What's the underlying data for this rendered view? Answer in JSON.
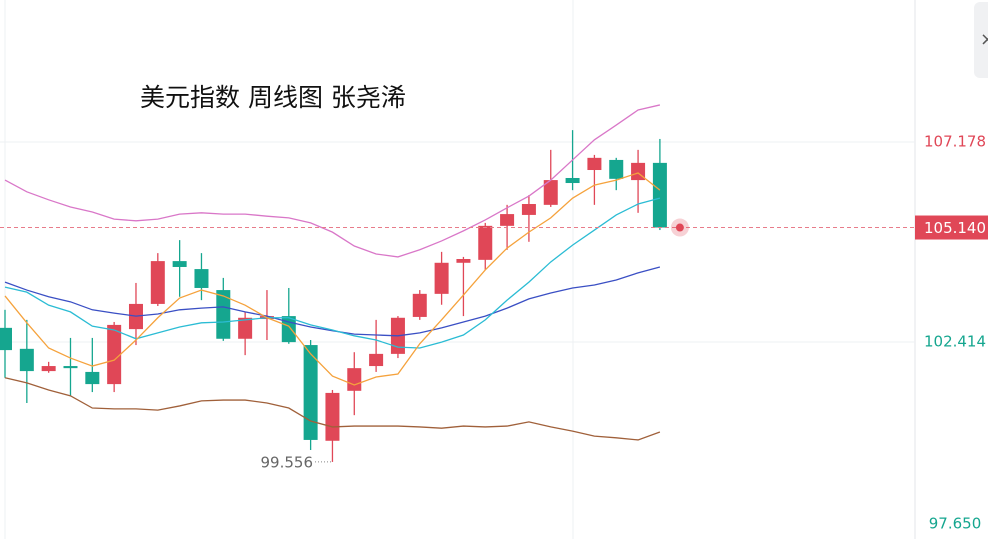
{
  "chart_data": {
    "type": "candlestick",
    "title": "美元指数  周线图  张尧浠",
    "up_color": "#e04757",
    "down_color": "#15a68f",
    "open": [
      102.75,
      102.25,
      101.72,
      101.84,
      101.7,
      101.41,
      102.72,
      103.32,
      104.34,
      104.15,
      103.65,
      102.49,
      102.96,
      103.03,
      102.34,
      100.06,
      101.25,
      101.84,
      102.13,
      103.01,
      103.56,
      104.3,
      104.37,
      105.18,
      105.44,
      105.68,
      106.32,
      106.51,
      106.75,
      106.27,
      106.68
    ],
    "high": [
      103.18,
      102.94,
      101.94,
      102.51,
      102.51,
      102.89,
      103.82,
      104.53,
      104.84,
      104.53,
      103.94,
      103.13,
      103.65,
      103.7,
      102.46,
      101.27,
      102.17,
      102.94,
      103.03,
      103.65,
      104.56,
      104.44,
      105.25,
      105.68,
      105.91,
      106.99,
      107.46,
      106.87,
      106.8,
      106.99,
      107.25
    ],
    "low": [
      101.56,
      100.96,
      101.68,
      101.13,
      101.22,
      101.22,
      102.34,
      103.27,
      103.49,
      103.41,
      102.44,
      102.1,
      102.46,
      102.37,
      99.84,
      99.556,
      100.67,
      101.7,
      102.03,
      102.94,
      103.3,
      103.03,
      104.13,
      104.61,
      104.8,
      105.63,
      106.03,
      105.68,
      106.03,
      105.49,
      105.08
    ],
    "close": [
      102.22,
      101.72,
      101.84,
      101.79,
      101.41,
      102.82,
      103.32,
      104.34,
      104.2,
      103.7,
      102.49,
      102.99,
      103.03,
      102.41,
      100.08,
      101.2,
      101.79,
      102.13,
      102.99,
      103.56,
      104.3,
      104.39,
      105.18,
      105.46,
      105.7,
      106.27,
      106.2,
      106.8,
      106.3,
      106.68,
      105.14
    ],
    "lines": [
      {
        "color": "#d977c8",
        "values": [
          106.27,
          105.99,
          105.8,
          105.63,
          105.51,
          105.34,
          105.3,
          105.34,
          105.46,
          105.49,
          105.46,
          105.46,
          105.41,
          105.37,
          105.25,
          105.03,
          104.7,
          104.51,
          104.44,
          104.61,
          104.82,
          105.06,
          105.32,
          105.61,
          105.89,
          106.27,
          106.75,
          107.23,
          107.58,
          107.94,
          108.06
        ]
      },
      {
        "color": "#a0603a",
        "values": [
          101.56,
          101.44,
          101.27,
          101.13,
          100.84,
          100.82,
          100.82,
          100.79,
          100.89,
          101.01,
          101.03,
          101.03,
          100.96,
          100.84,
          100.53,
          100.39,
          100.41,
          100.41,
          100.41,
          100.39,
          100.36,
          100.41,
          100.39,
          100.41,
          100.51,
          100.39,
          100.29,
          100.17,
          100.13,
          100.08,
          100.27
        ]
      },
      {
        "color": "#3a4fc4",
        "values": [
          103.84,
          103.65,
          103.49,
          103.37,
          103.18,
          103.1,
          103.03,
          103.08,
          103.18,
          103.22,
          103.25,
          103.13,
          103.03,
          102.89,
          102.77,
          102.68,
          102.6,
          102.58,
          102.56,
          102.63,
          102.75,
          102.89,
          103.03,
          103.22,
          103.44,
          103.58,
          103.7,
          103.77,
          103.89,
          104.06,
          104.2
        ]
      },
      {
        "color": "#2bbcd4",
        "values": [
          103.72,
          103.6,
          103.29,
          103.13,
          102.79,
          102.7,
          102.49,
          102.63,
          102.77,
          102.87,
          102.89,
          102.94,
          102.99,
          102.99,
          102.82,
          102.7,
          102.56,
          102.46,
          102.29,
          102.27,
          102.41,
          102.58,
          102.94,
          103.41,
          103.84,
          104.32,
          104.72,
          105.08,
          105.44,
          105.7,
          105.84
        ]
      },
      {
        "color": "#f5a23c",
        "values": [
          103.51,
          102.87,
          102.27,
          102.03,
          101.84,
          101.98,
          102.46,
          102.99,
          103.46,
          103.65,
          103.51,
          103.29,
          102.99,
          102.79,
          102.13,
          101.6,
          101.39,
          101.58,
          101.65,
          102.37,
          102.94,
          103.53,
          104.13,
          104.65,
          105.03,
          105.37,
          105.84,
          106.15,
          106.27,
          106.44,
          106.03
        ]
      }
    ],
    "ylim": [
      97.72,
      110.56
    ],
    "yticks": [
      107.178,
      102.414,
      {
        "value": 97.65,
        "label": "97.650"
      }
    ],
    "last_price": {
      "value": 105.14,
      "label": "105.140"
    },
    "low_label": 99.556,
    "grid": true
  }
}
